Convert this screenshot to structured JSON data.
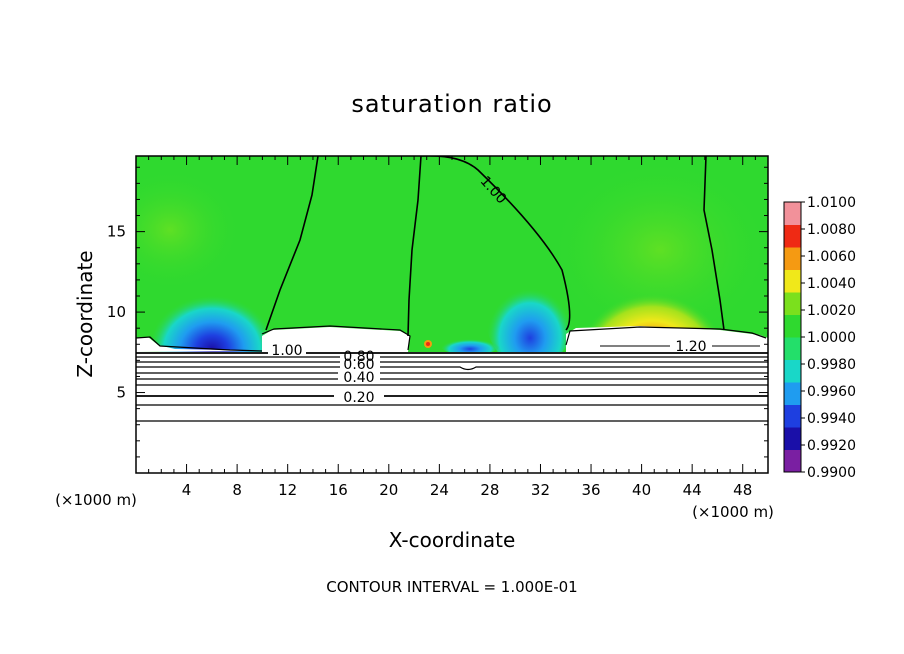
{
  "chart_data": {
    "type": "heatmap",
    "title": "saturation ratio",
    "xlabel": "X-coordinate",
    "ylabel": "Z-coordinate",
    "x_unit": "(×1000 m)",
    "y_unit": "(×1000 m)",
    "xlim": [
      0,
      50
    ],
    "ylim": [
      0,
      19.7
    ],
    "x_ticks": [
      "4",
      "8",
      "12",
      "16",
      "20",
      "24",
      "28",
      "32",
      "36",
      "40",
      "44",
      "48"
    ],
    "y_ticks": [
      "5",
      "10",
      "15"
    ],
    "colorbar": {
      "min": 0.99,
      "max": 1.01,
      "labels": [
        "1.0100",
        "1.0080",
        "1.0060",
        "1.0040",
        "1.0020",
        "1.0000",
        "0.9980",
        "0.9960",
        "0.9940",
        "0.9920",
        "0.9900"
      ],
      "colors": [
        "#7a1fa2",
        "#1a0fa8",
        "#1e3fe0",
        "#1f9cf0",
        "#19d7c8",
        "#23df6a",
        "#2fd92f",
        "#7be01d",
        "#f0e81a",
        "#f59a12",
        "#ef2a14",
        "#f2919a"
      ]
    },
    "contour_labels": [
      "1.00",
      "1.00",
      "1.20",
      "0.80",
      "0.60",
      "0.40",
      "0.20"
    ],
    "contour_interval_text": "CONTOUR INTERVAL = 1.000E-01",
    "features": [
      {
        "type": "dry_minimum",
        "x": 5,
        "z": 9.2,
        "value": 0.992
      },
      {
        "type": "dry_minimum",
        "x": 31.5,
        "z": 9.5,
        "value": 0.993
      },
      {
        "type": "supersaturation_maximum",
        "x": 41,
        "z": 10.5,
        "value": 1.006
      }
    ]
  }
}
